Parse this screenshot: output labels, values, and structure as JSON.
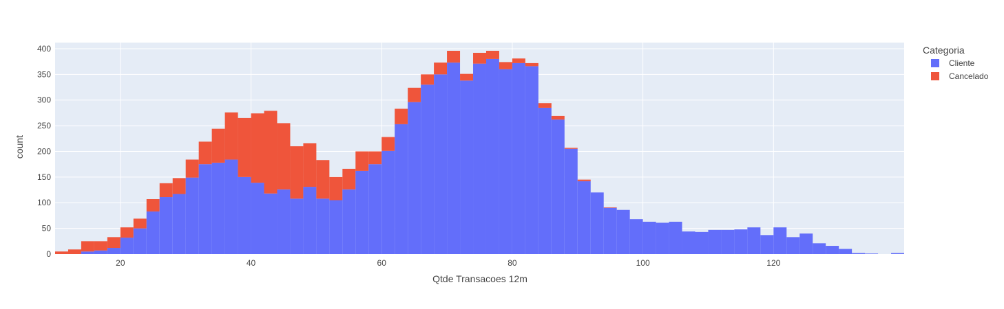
{
  "chart_data": {
    "type": "bar",
    "barmode": "stack",
    "xlabel": "Qtde Transacoes 12m",
    "ylabel": "count",
    "xlim": [
      10,
      140
    ],
    "ylim": [
      0,
      412
    ],
    "x_ticks": [
      20,
      40,
      60,
      80,
      100,
      120
    ],
    "y_ticks": [
      0,
      50,
      100,
      150,
      200,
      250,
      300,
      350,
      400
    ],
    "grid": true,
    "legend_title": "Categoria",
    "legend_position": "top-right",
    "bin_start": 10,
    "bin_width": 2,
    "series": [
      {
        "name": "Cliente",
        "color": "#636efa",
        "values": [
          0,
          0,
          5,
          7,
          12,
          32,
          50,
          83,
          111,
          117,
          149,
          175,
          178,
          184,
          150,
          139,
          118,
          126,
          108,
          131,
          108,
          105,
          126,
          162,
          175,
          201,
          253,
          296,
          330,
          350,
          373,
          338,
          371,
          380,
          360,
          372,
          366,
          285,
          262,
          205,
          142,
          120,
          90,
          86,
          68,
          63,
          61,
          63,
          44,
          43,
          47,
          47,
          48,
          52,
          37,
          52,
          33,
          40,
          21,
          16,
          10,
          2,
          1,
          0,
          2
        ]
      },
      {
        "name": "Cancelado",
        "color": "#ef553b",
        "values": [
          5,
          9,
          20,
          18,
          21,
          20,
          19,
          24,
          27,
          31,
          35,
          44,
          66,
          92,
          115,
          135,
          161,
          129,
          102,
          85,
          75,
          45,
          40,
          38,
          25,
          27,
          30,
          28,
          20,
          23,
          23,
          13,
          21,
          16,
          14,
          9,
          6,
          9,
          7,
          2,
          3,
          0,
          1,
          0,
          0,
          0,
          0,
          0,
          0,
          0,
          0,
          0,
          0,
          0,
          0,
          0,
          0,
          0,
          0,
          0,
          0,
          0,
          0,
          0,
          0
        ]
      }
    ]
  }
}
